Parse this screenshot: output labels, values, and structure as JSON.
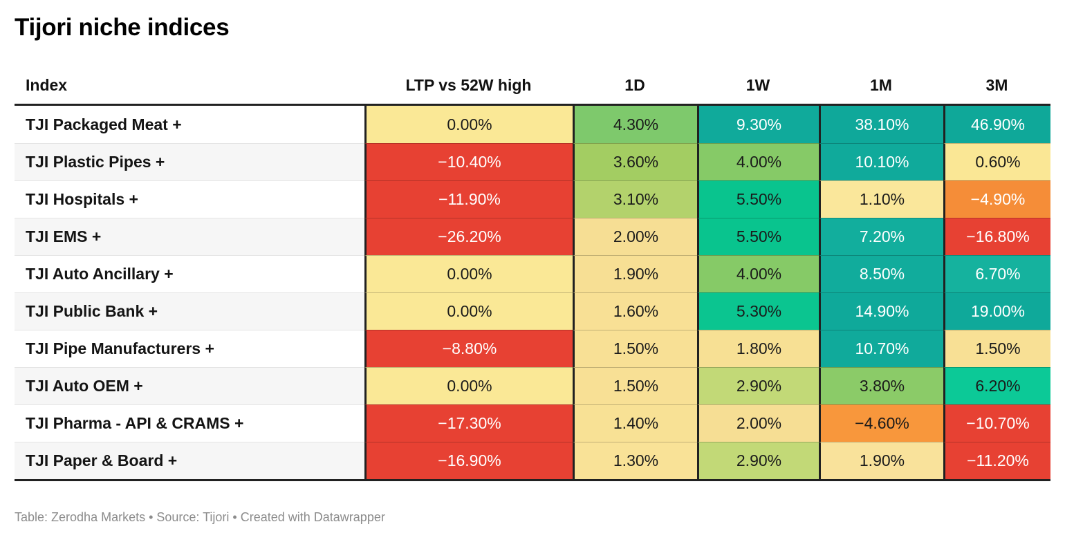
{
  "title": "Tijori niche indices",
  "footer": "Table: Zerodha Markets • Source: Tijori • Created with Datawrapper",
  "table": {
    "columns": [
      "Index",
      "LTP vs 52W high",
      "1D",
      "1W",
      "1M",
      "3M"
    ],
    "rows": [
      {
        "label": "TJI Packaged Meat +",
        "cells": [
          {
            "text": "0.00%",
            "bg": "#FAE896",
            "color": "#1a1a1a"
          },
          {
            "text": "4.30%",
            "bg": "#7EC96C",
            "color": "#1a1a1a"
          },
          {
            "text": "9.30%",
            "bg": "#10AA9B",
            "color": "#ffffff"
          },
          {
            "text": "38.10%",
            "bg": "#0FA89A",
            "color": "#ffffff"
          },
          {
            "text": "46.90%",
            "bg": "#0FA899",
            "color": "#ffffff"
          }
        ]
      },
      {
        "label": "TJI Plastic Pipes +",
        "cells": [
          {
            "text": "−10.40%",
            "bg": "#E74133",
            "color": "#ffffff"
          },
          {
            "text": "3.60%",
            "bg": "#A3CD62",
            "color": "#1a1a1a"
          },
          {
            "text": "4.00%",
            "bg": "#86CA67",
            "color": "#1a1a1a"
          },
          {
            "text": "10.10%",
            "bg": "#10AA9B",
            "color": "#ffffff"
          },
          {
            "text": "0.60%",
            "bg": "#FAE795",
            "color": "#1a1a1a"
          }
        ]
      },
      {
        "label": "TJI Hospitals +",
        "cells": [
          {
            "text": "−11.90%",
            "bg": "#E74133",
            "color": "#ffffff"
          },
          {
            "text": "3.10%",
            "bg": "#B3D26C",
            "color": "#1a1a1a"
          },
          {
            "text": "5.50%",
            "bg": "#09C48E",
            "color": "#1a1a1a"
          },
          {
            "text": "1.10%",
            "bg": "#FAE79B",
            "color": "#1a1a1a"
          },
          {
            "text": "−4.90%",
            "bg": "#F58D38",
            "color": "#ffffff"
          }
        ]
      },
      {
        "label": "TJI EMS +",
        "cells": [
          {
            "text": "−26.20%",
            "bg": "#E74133",
            "color": "#ffffff"
          },
          {
            "text": "2.00%",
            "bg": "#F6DE94",
            "color": "#1a1a1a"
          },
          {
            "text": "5.50%",
            "bg": "#09C48E",
            "color": "#1a1a1a"
          },
          {
            "text": "7.20%",
            "bg": "#12AE9D",
            "color": "#ffffff"
          },
          {
            "text": "−16.80%",
            "bg": "#E74133",
            "color": "#ffffff"
          }
        ]
      },
      {
        "label": "TJI Auto Ancillary +",
        "cells": [
          {
            "text": "0.00%",
            "bg": "#FAE896",
            "color": "#1a1a1a"
          },
          {
            "text": "1.90%",
            "bg": "#F7DF94",
            "color": "#1a1a1a"
          },
          {
            "text": "4.00%",
            "bg": "#86CA67",
            "color": "#1a1a1a"
          },
          {
            "text": "8.50%",
            "bg": "#11AC9C",
            "color": "#ffffff"
          },
          {
            "text": "6.70%",
            "bg": "#15B29E",
            "color": "#ffffff"
          }
        ]
      },
      {
        "label": "TJI Public Bank +",
        "cells": [
          {
            "text": "0.00%",
            "bg": "#FAE896",
            "color": "#1a1a1a"
          },
          {
            "text": "1.60%",
            "bg": "#F8E095",
            "color": "#1a1a1a"
          },
          {
            "text": "5.30%",
            "bg": "#0BC590",
            "color": "#1a1a1a"
          },
          {
            "text": "14.90%",
            "bg": "#0FA99A",
            "color": "#ffffff"
          },
          {
            "text": "19.00%",
            "bg": "#0FA99A",
            "color": "#ffffff"
          }
        ]
      },
      {
        "label": "TJI Pipe Manufacturers +",
        "cells": [
          {
            "text": "−8.80%",
            "bg": "#E74133",
            "color": "#ffffff"
          },
          {
            "text": "1.50%",
            "bg": "#F8E095",
            "color": "#1a1a1a"
          },
          {
            "text": "1.80%",
            "bg": "#F7E094",
            "color": "#1a1a1a"
          },
          {
            "text": "10.70%",
            "bg": "#10AA9B",
            "color": "#ffffff"
          },
          {
            "text": "1.50%",
            "bg": "#F8E095",
            "color": "#1a1a1a"
          }
        ]
      },
      {
        "label": "TJI Auto OEM +",
        "cells": [
          {
            "text": "0.00%",
            "bg": "#FAE896",
            "color": "#1a1a1a"
          },
          {
            "text": "1.50%",
            "bg": "#F8E095",
            "color": "#1a1a1a"
          },
          {
            "text": "2.90%",
            "bg": "#C2D977",
            "color": "#1a1a1a"
          },
          {
            "text": "3.80%",
            "bg": "#8BCB68",
            "color": "#1a1a1a"
          },
          {
            "text": "6.20%",
            "bg": "#0CC997",
            "color": "#1a1a1a"
          }
        ]
      },
      {
        "label": "TJI Pharma - API & CRAMS +",
        "cells": [
          {
            "text": "−17.30%",
            "bg": "#E74133",
            "color": "#ffffff"
          },
          {
            "text": "1.40%",
            "bg": "#F8E195",
            "color": "#1a1a1a"
          },
          {
            "text": "2.00%",
            "bg": "#F6DE94",
            "color": "#1a1a1a"
          },
          {
            "text": "−4.60%",
            "bg": "#F8973C",
            "color": "#1a1a1a"
          },
          {
            "text": "−10.70%",
            "bg": "#E74133",
            "color": "#ffffff"
          }
        ]
      },
      {
        "label": "TJI Paper & Board +",
        "cells": [
          {
            "text": "−16.90%",
            "bg": "#E74133",
            "color": "#ffffff"
          },
          {
            "text": "1.30%",
            "bg": "#F9E297",
            "color": "#1a1a1a"
          },
          {
            "text": "2.90%",
            "bg": "#C2D977",
            "color": "#1a1a1a"
          },
          {
            "text": "1.90%",
            "bg": "#F9E29B",
            "color": "#1a1a1a"
          },
          {
            "text": "−11.20%",
            "bg": "#E74133",
            "color": "#ffffff"
          }
        ]
      }
    ]
  },
  "chart_data": {
    "type": "table",
    "title": "Tijori niche indices",
    "columns": [
      "Index",
      "LTP vs 52W high",
      "1D",
      "1W",
      "1M",
      "3M"
    ],
    "categories": [
      "TJI Packaged Meat +",
      "TJI Plastic Pipes +",
      "TJI Hospitals +",
      "TJI EMS +",
      "TJI Auto Ancillary +",
      "TJI Public Bank +",
      "TJI Pipe Manufacturers +",
      "TJI Auto OEM +",
      "TJI Pharma - API & CRAMS +",
      "TJI Paper & Board +"
    ],
    "series": [
      {
        "name": "LTP vs 52W high",
        "values": [
          0.0,
          -10.4,
          -11.9,
          -26.2,
          0.0,
          0.0,
          -8.8,
          0.0,
          -17.3,
          -16.9
        ]
      },
      {
        "name": "1D",
        "values": [
          4.3,
          3.6,
          3.1,
          2.0,
          1.9,
          1.6,
          1.5,
          1.5,
          1.4,
          1.3
        ]
      },
      {
        "name": "1W",
        "values": [
          9.3,
          4.0,
          5.5,
          5.5,
          4.0,
          5.3,
          1.8,
          2.9,
          2.0,
          2.9
        ]
      },
      {
        "name": "1M",
        "values": [
          38.1,
          10.1,
          1.1,
          7.2,
          8.5,
          14.9,
          10.7,
          3.8,
          -4.6,
          1.9
        ]
      },
      {
        "name": "3M",
        "values": [
          46.9,
          0.6,
          -4.9,
          -16.8,
          6.7,
          19.0,
          1.5,
          6.2,
          -10.7,
          -11.2
        ]
      }
    ],
    "value_unit": "%",
    "heatmap_palette": {
      "negative_strong": "#E74133",
      "negative_mild": "#F6913C",
      "near_zero": "#FAE896",
      "positive_mild": "#86CA67",
      "positive_strong": "#10AA9B"
    },
    "footnote": "Table: Zerodha Markets • Source: Tijori • Created with Datawrapper"
  }
}
